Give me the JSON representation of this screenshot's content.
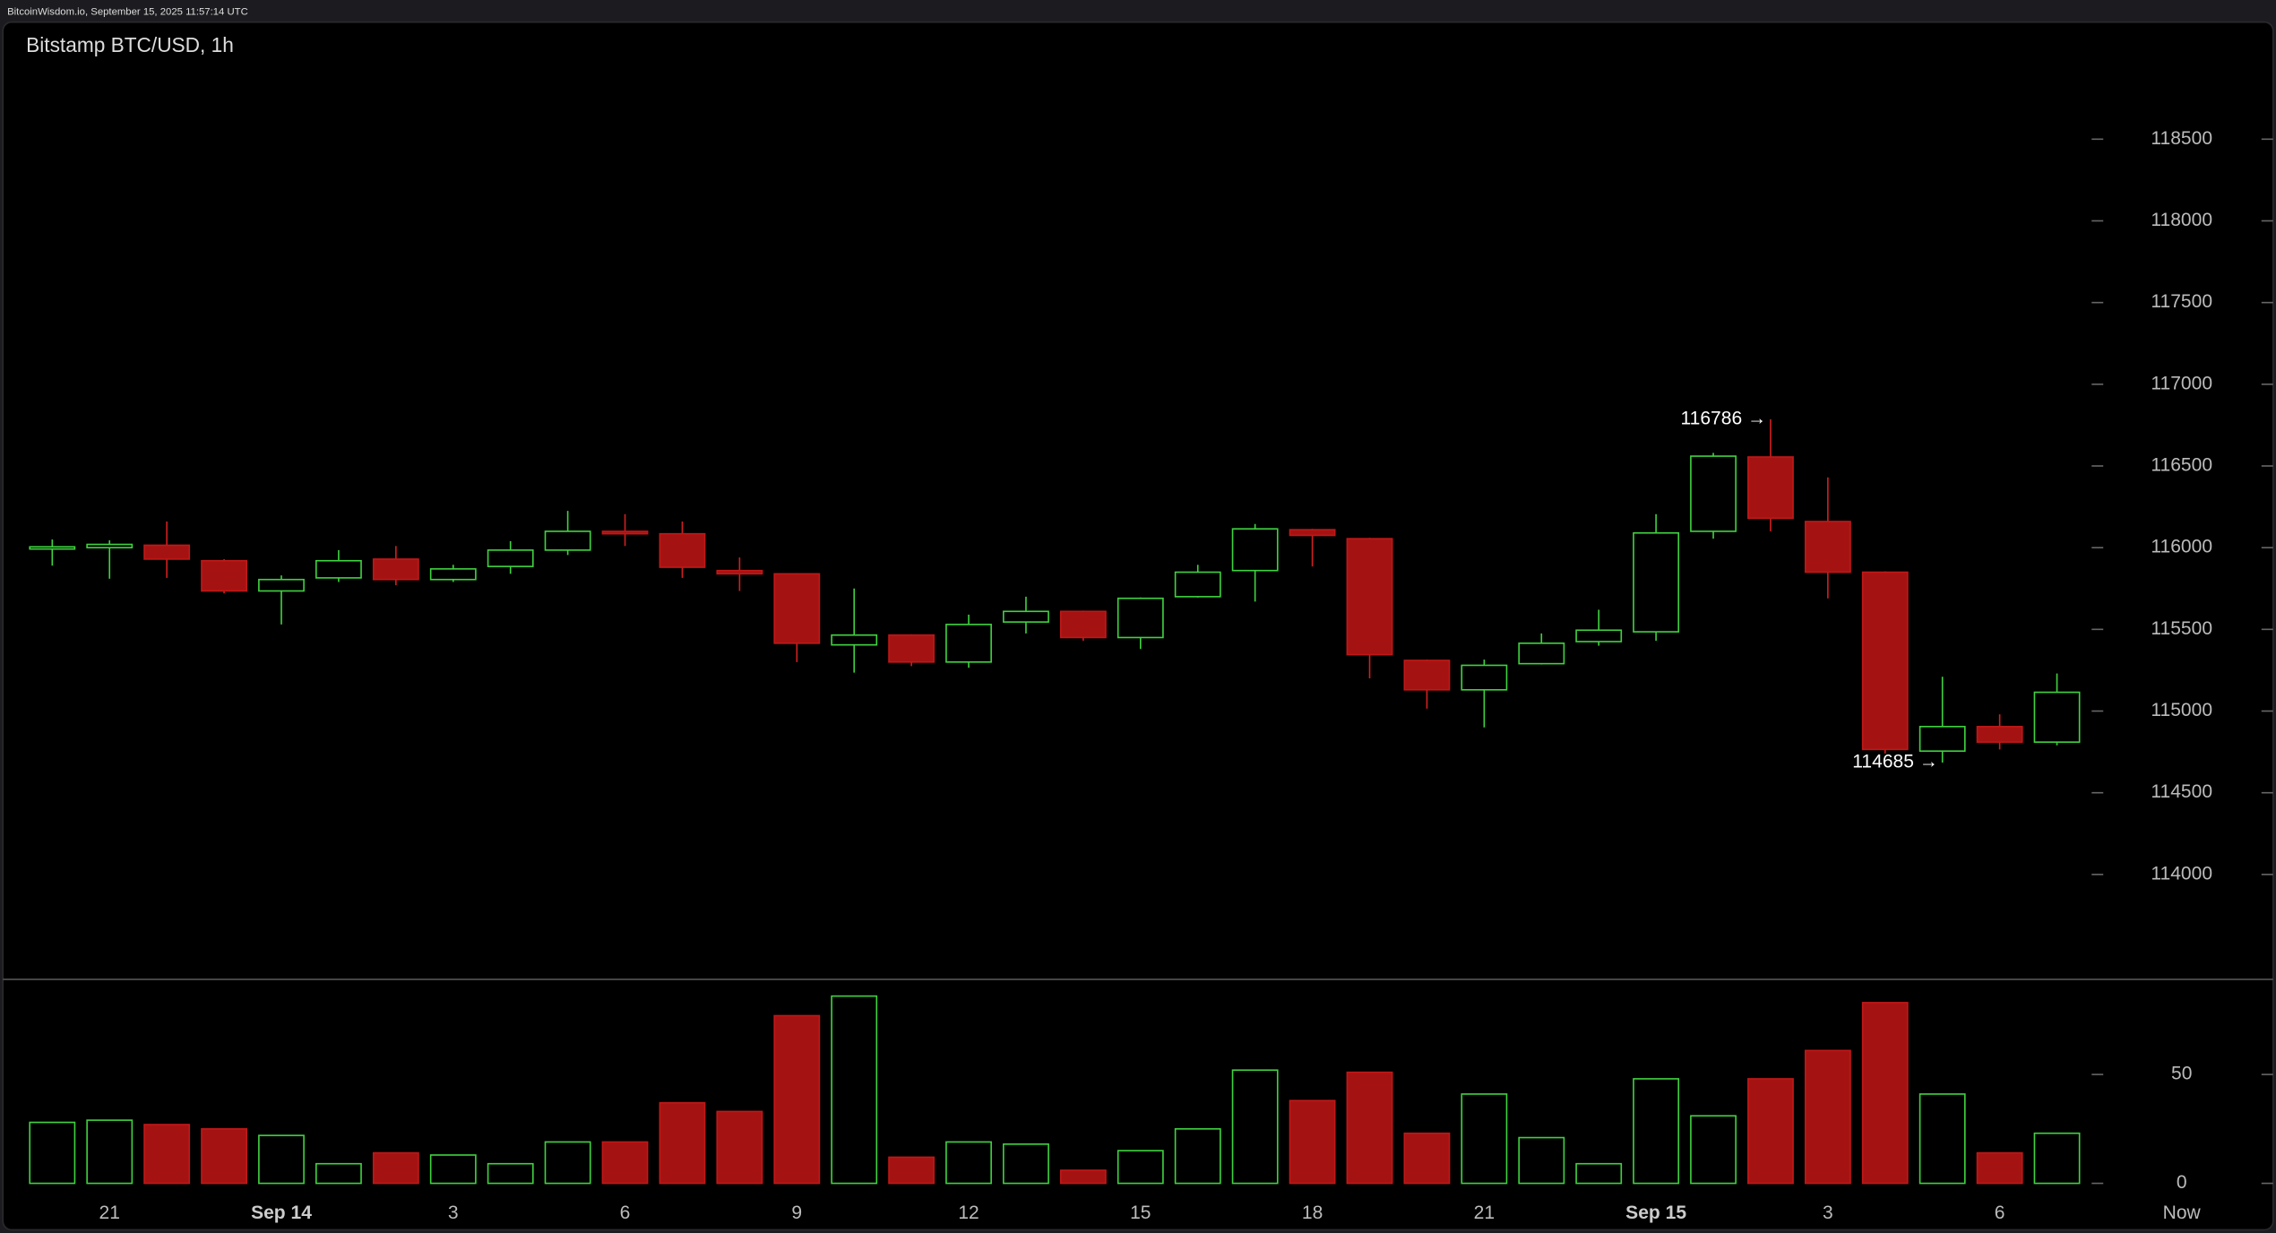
{
  "header": "BitcoinWisdom.io, September 15, 2025 11:57:14 UTC",
  "chart_data": {
    "type": "candlestick",
    "title": "Bitstamp BTC/USD, 1h",
    "categories": [
      null,
      "21",
      null,
      null,
      "Sep 14",
      null,
      null,
      "3",
      null,
      null,
      "6",
      null,
      null,
      "9",
      null,
      null,
      "12",
      null,
      null,
      "15",
      null,
      null,
      "18",
      null,
      null,
      "21",
      null,
      null,
      "Sep 15",
      null,
      null,
      "3",
      null,
      null,
      "6",
      null
    ],
    "now_label": "Now",
    "open": [
      115995,
      116000,
      116015,
      115920,
      115735,
      115815,
      115930,
      115805,
      115885,
      115985,
      116100,
      116085,
      115860,
      115840,
      115405,
      115465,
      115300,
      115545,
      115610,
      115450,
      115700,
      115860,
      116110,
      116055,
      115310,
      115130,
      115290,
      115425,
      115485,
      116100,
      116555,
      116160,
      115850,
      114755,
      114905,
      114810
    ],
    "high": [
      116050,
      116045,
      116160,
      115930,
      115830,
      115985,
      116010,
      115895,
      116040,
      116225,
      116205,
      116160,
      115940,
      115845,
      115750,
      115470,
      115590,
      115700,
      115615,
      115695,
      115895,
      116145,
      116115,
      116060,
      115315,
      115315,
      115475,
      115620,
      116205,
      116580,
      116786,
      116430,
      115855,
      115210,
      114980,
      115230
    ],
    "low": [
      115890,
      115810,
      115815,
      115720,
      115530,
      115790,
      115770,
      115790,
      115840,
      115955,
      116010,
      115815,
      115735,
      115300,
      115235,
      115275,
      115265,
      115475,
      115430,
      115380,
      115695,
      115670,
      115885,
      115200,
      115015,
      114900,
      115285,
      115400,
      115430,
      116055,
      116100,
      115690,
      114740,
      114685,
      114765,
      114790
    ],
    "close": [
      116005,
      116020,
      115930,
      115735,
      115805,
      115920,
      115805,
      115870,
      115985,
      116100,
      116085,
      115880,
      115840,
      115415,
      115465,
      115300,
      115530,
      115610,
      115450,
      115690,
      115850,
      116115,
      116075,
      115345,
      115130,
      115280,
      115415,
      115495,
      116090,
      116560,
      116180,
      115850,
      114765,
      114905,
      114810,
      115115
    ],
    "volume": [
      28,
      29,
      27,
      25,
      22,
      9,
      14,
      13,
      9,
      19,
      19,
      37,
      33,
      77,
      86,
      12,
      19,
      18,
      6,
      15,
      25,
      52,
      38,
      51,
      23,
      41,
      21,
      9,
      48,
      31,
      48,
      61,
      83,
      41,
      14,
      23
    ],
    "up_color": "#3fd23f",
    "down_color": "#a51212",
    "ylim": [
      113380,
      118950
    ],
    "yticks": [
      114000,
      114500,
      115000,
      115500,
      116000,
      116500,
      117000,
      117500,
      118000,
      118500
    ],
    "volume_ylim": [
      0,
      90
    ],
    "volume_yticks": [
      0,
      50
    ],
    "annotations": [
      {
        "value": 116786,
        "label": "116786 →"
      },
      {
        "value": 114685,
        "label": "114685 →"
      }
    ]
  }
}
